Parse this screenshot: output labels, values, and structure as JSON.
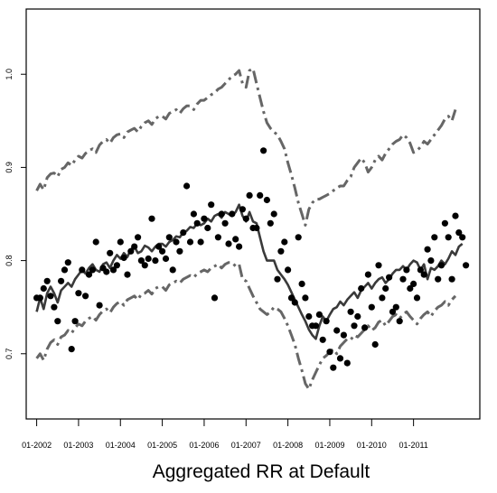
{
  "chart_data": {
    "type": "line",
    "title": "",
    "xlabel": "Aggregated RR at Default",
    "ylabel": "",
    "x_start": "2002-01",
    "x_ticks": [
      "01-2002",
      "01-2003",
      "01-2004",
      "01-2005",
      "01-2006",
      "01-2007",
      "01-2008",
      "01-2009",
      "01-2010",
      "01-2011"
    ],
    "y_ticks": [
      "0.7",
      "0.8",
      "0.9",
      "1.0"
    ],
    "xlim": [
      "2001-10",
      "2012-08"
    ],
    "ylim": [
      0.63,
      1.07
    ],
    "grid": false,
    "legend": "none",
    "series": [
      {
        "style": "solid",
        "color": "#3a3a3a",
        "values": [
          0.745,
          0.76,
          0.748,
          0.765,
          0.772,
          0.765,
          0.755,
          0.768,
          0.772,
          0.776,
          0.772,
          0.78,
          0.785,
          0.79,
          0.786,
          0.792,
          0.796,
          0.79,
          0.788,
          0.796,
          0.798,
          0.792,
          0.8,
          0.806,
          0.802,
          0.808,
          0.804,
          0.812,
          0.815,
          0.808,
          0.81,
          0.816,
          0.814,
          0.81,
          0.815,
          0.818,
          0.818,
          0.815,
          0.82,
          0.822,
          0.826,
          0.825,
          0.83,
          0.832,
          0.836,
          0.835,
          0.84,
          0.838,
          0.84,
          0.845,
          0.842,
          0.848,
          0.85,
          0.846,
          0.852,
          0.85,
          0.848,
          0.852,
          0.86,
          0.848,
          0.842,
          0.852,
          0.842,
          0.84,
          0.825,
          0.81,
          0.8,
          0.8,
          0.8,
          0.79,
          0.785,
          0.78,
          0.774,
          0.766,
          0.758,
          0.75,
          0.742,
          0.735,
          0.726,
          0.72,
          0.716,
          0.73,
          0.74,
          0.735,
          0.742,
          0.748,
          0.75,
          0.756,
          0.752,
          0.758,
          0.762,
          0.766,
          0.76,
          0.768,
          0.772,
          0.776,
          0.77,
          0.776,
          0.78,
          0.782,
          0.776,
          0.78,
          0.786,
          0.79,
          0.79,
          0.794,
          0.79,
          0.796,
          0.8,
          0.798,
          0.79,
          0.796,
          0.78,
          0.792,
          0.79,
          0.794,
          0.8,
          0.796,
          0.802,
          0.81,
          0.806,
          0.815,
          0.818
        ]
      },
      {
        "style": "dashdot",
        "color": "#666666",
        "values": [
          0.875,
          0.882,
          0.876,
          0.889,
          0.893,
          0.894,
          0.89,
          0.898,
          0.9,
          0.905,
          0.902,
          0.908,
          0.912,
          0.91,
          0.915,
          0.918,
          0.92,
          0.916,
          0.924,
          0.928,
          0.93,
          0.926,
          0.932,
          0.935,
          0.936,
          0.932,
          0.938,
          0.94,
          0.942,
          0.938,
          0.944,
          0.948,
          0.95,
          0.946,
          0.952,
          0.955,
          0.955,
          0.952,
          0.958,
          0.96,
          0.962,
          0.958,
          0.963,
          0.966,
          0.966,
          0.962,
          0.968,
          0.972,
          0.972,
          0.975,
          0.978,
          0.98,
          0.984,
          0.986,
          0.99,
          0.994,
          0.998,
          1.0,
          1.004,
          0.99,
          0.986,
          1.004,
          1.006,
          0.99,
          0.975,
          0.96,
          0.948,
          0.942,
          0.938,
          0.935,
          0.928,
          0.92,
          0.905,
          0.892,
          0.878,
          0.862,
          0.85,
          0.838,
          0.855,
          0.862,
          0.866,
          0.866,
          0.868,
          0.87,
          0.872,
          0.875,
          0.878,
          0.88,
          0.88,
          0.886,
          0.89,
          0.9,
          0.905,
          0.91,
          0.905,
          0.895,
          0.9,
          0.908,
          0.912,
          0.908,
          0.915,
          0.92,
          0.925,
          0.928,
          0.93,
          0.935,
          0.932,
          0.926,
          0.916,
          0.918,
          0.922,
          0.928,
          0.925,
          0.93,
          0.935,
          0.94,
          0.945,
          0.952,
          0.955,
          0.95,
          0.962
        ]
      },
      {
        "style": "dashdot",
        "color": "#666666",
        "values": [
          0.695,
          0.7,
          0.693,
          0.705,
          0.712,
          0.715,
          0.71,
          0.718,
          0.72,
          0.725,
          0.722,
          0.728,
          0.732,
          0.73,
          0.735,
          0.738,
          0.74,
          0.736,
          0.742,
          0.746,
          0.748,
          0.744,
          0.75,
          0.754,
          0.756,
          0.752,
          0.758,
          0.76,
          0.762,
          0.758,
          0.764,
          0.765,
          0.768,
          0.764,
          0.77,
          0.772,
          0.772,
          0.768,
          0.774,
          0.776,
          0.778,
          0.776,
          0.78,
          0.782,
          0.784,
          0.782,
          0.786,
          0.788,
          0.79,
          0.788,
          0.792,
          0.794,
          0.796,
          0.792,
          0.796,
          0.798,
          0.798,
          0.794,
          0.796,
          0.78,
          0.778,
          0.77,
          0.762,
          0.755,
          0.748,
          0.745,
          0.742,
          0.745,
          0.75,
          0.748,
          0.745,
          0.738,
          0.73,
          0.72,
          0.71,
          0.695,
          0.682,
          0.668,
          0.662,
          0.672,
          0.68,
          0.688,
          0.695,
          0.698,
          0.702,
          0.705,
          0.7,
          0.708,
          0.712,
          0.716,
          0.715,
          0.72,
          0.718,
          0.722,
          0.726,
          0.73,
          0.725,
          0.728,
          0.734,
          0.736,
          0.73,
          0.735,
          0.74,
          0.742,
          0.738,
          0.742,
          0.745,
          0.74,
          0.736,
          0.732,
          0.738,
          0.742,
          0.745,
          0.74,
          0.746,
          0.75,
          0.752,
          0.756,
          0.752,
          0.758,
          0.762
        ]
      }
    ],
    "points": [
      [
        0.76,
        0.76,
        0.77,
        0.778,
        0.762,
        0.75,
        0.735,
        0.778,
        0.79,
        0.798,
        0.705,
        0.735,
        0.765,
        0.79,
        0.762,
        0.785,
        0.79,
        0.82,
        0.752,
        0.792,
        0.788,
        0.808,
        0.79,
        0.795,
        0.82,
        0.803,
        0.785,
        0.81,
        0.815,
        0.825,
        0.8,
        0.795,
        0.802,
        0.845,
        0.8,
        0.815,
        0.81,
        0.802,
        0.825,
        0.79,
        0.82,
        0.81,
        0.83,
        0.88,
        0.82,
        0.85,
        0.84,
        0.82,
        0.845,
        0.835,
        0.86,
        0.76,
        0.825,
        0.85,
        0.84,
        0.818,
        0.85,
        0.823,
        0.815,
        0.855,
        0.845,
        0.87,
        0.835,
        0.835,
        0.87,
        0.918,
        0.865,
        0.84,
        0.85,
        0.78,
        0.81,
        0.82,
        0.79,
        0.76,
        0.755,
        0.825,
        0.775,
        0.76,
        0.74,
        0.73,
        0.73,
        0.742,
        0.715,
        0.735,
        0.702,
        0.685,
        0.725,
        0.695,
        0.72,
        0.69,
        0.745,
        0.73,
        0.74,
        0.77,
        0.728,
        0.785,
        0.75,
        0.71,
        0.795,
        0.76,
        0.77,
        0.782,
        0.745,
        0.75,
        0.735,
        0.78,
        0.79,
        0.77,
        0.775,
        0.76,
        0.79,
        0.785,
        0.812,
        0.8,
        0.825,
        0.78,
        0.795,
        0.84,
        0.825,
        0.78,
        0.848,
        0.83,
        0.825,
        0.795
      ]
    ]
  }
}
